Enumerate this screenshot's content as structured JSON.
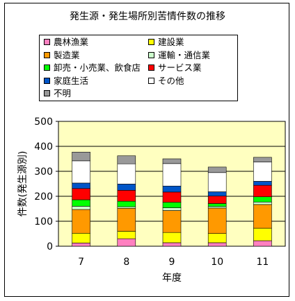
{
  "chart_data": {
    "type": "bar",
    "stacked": true,
    "title": "発生源・発生場所別苦情件数の推移",
    "xlabel": "年度",
    "ylabel": "件数(発生源別)",
    "categories": [
      "7",
      "8",
      "9",
      "10",
      "11"
    ],
    "ylim": [
      0,
      500
    ],
    "yticks": [
      "0",
      "100",
      "200",
      "300",
      "400",
      "500"
    ],
    "grid": true,
    "legend_position": "top",
    "series": [
      {
        "name": "農林漁業",
        "color": "#ff80c0",
        "values": [
          13,
          30,
          14,
          14,
          22
        ]
      },
      {
        "name": "建設業",
        "color": "#ffff00",
        "values": [
          39,
          30,
          41,
          37,
          50
        ]
      },
      {
        "name": "製造業",
        "color": "#ff9900",
        "values": [
          95,
          92,
          88,
          102,
          95
        ]
      },
      {
        "name": "運輸・通信業",
        "color": "#ccffcc",
        "values": [
          13,
          6,
          11,
          6,
          10
        ]
      },
      {
        "name": "卸売・小売業、飲食店",
        "color": "#00ff00",
        "values": [
          26,
          22,
          22,
          12,
          21
        ]
      },
      {
        "name": "サービス業",
        "color": "#ff0000",
        "values": [
          45,
          44,
          41,
          30,
          46
        ]
      },
      {
        "name": "家庭生活",
        "color": "#0055c8",
        "values": [
          22,
          25,
          24,
          17,
          16
        ]
      },
      {
        "name": "その他",
        "color": "#ffffff",
        "values": [
          89,
          81,
          90,
          77,
          77
        ]
      },
      {
        "name": "不明",
        "color": "#999999",
        "values": [
          35,
          32,
          19,
          22,
          19
        ]
      }
    ],
    "plot_background": "#ffffc0"
  }
}
